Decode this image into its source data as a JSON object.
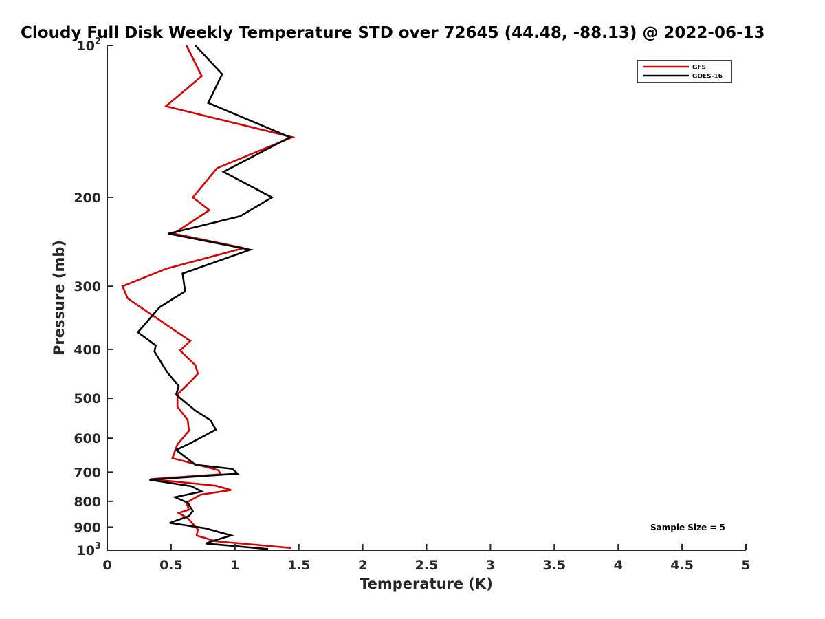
{
  "chart_data": {
    "type": "line",
    "title": "Cloudy Full Disk Weekly Temperature STD over 72645 (44.48, -88.13) @ 2022-06-13",
    "xlabel": "Temperature (K)",
    "ylabel": "Pressure (mb)",
    "xlim": [
      0,
      5
    ],
    "ylim": [
      100,
      1000
    ],
    "yscale": "log",
    "y_reversed": true,
    "grid": false,
    "legend_position": "top-right",
    "x_ticks": [
      0,
      0.5,
      1,
      1.5,
      2,
      2.5,
      3,
      3.5,
      4,
      4.5,
      5
    ],
    "x_tick_labels": [
      "0",
      "0.5",
      "1",
      "1.5",
      "2",
      "2.5",
      "3",
      "3.5",
      "4",
      "4.5",
      "5"
    ],
    "y_ticks": [
      {
        "value": 100,
        "base": "10",
        "exp": "2"
      },
      {
        "value": 200,
        "label": "200"
      },
      {
        "value": 300,
        "label": "300"
      },
      {
        "value": 400,
        "label": "400"
      },
      {
        "value": 500,
        "label": "500"
      },
      {
        "value": 600,
        "label": "600"
      },
      {
        "value": 700,
        "label": "700"
      },
      {
        "value": 800,
        "label": "800"
      },
      {
        "value": 900,
        "label": "900"
      },
      {
        "value": 1000,
        "base": "10",
        "exp": "3"
      }
    ],
    "annotation": "Sample Size = 5",
    "series": [
      {
        "name": "GFS",
        "color": "#dd0000",
        "points": [
          [
            0.62,
            100
          ],
          [
            0.74,
            115
          ],
          [
            0.46,
            132
          ],
          [
            1.45,
            152
          ],
          [
            0.86,
            175
          ],
          [
            0.67,
            200
          ],
          [
            0.8,
            212
          ],
          [
            0.52,
            236
          ],
          [
            1.07,
            252
          ],
          [
            0.46,
            277
          ],
          [
            0.12,
            300
          ],
          [
            0.16,
            317
          ],
          [
            0.65,
            385
          ],
          [
            0.57,
            402
          ],
          [
            0.69,
            430
          ],
          [
            0.71,
            447
          ],
          [
            0.65,
            464
          ],
          [
            0.55,
            491
          ],
          [
            0.55,
            520
          ],
          [
            0.63,
            552
          ],
          [
            0.64,
            580
          ],
          [
            0.55,
            617
          ],
          [
            0.51,
            657
          ],
          [
            0.87,
            694
          ],
          [
            0.89,
            707
          ],
          [
            0.34,
            723
          ],
          [
            0.85,
            745
          ],
          [
            0.97,
            760
          ],
          [
            0.73,
            776
          ],
          [
            0.62,
            805
          ],
          [
            0.64,
            831
          ],
          [
            0.56,
            844
          ],
          [
            0.63,
            864
          ],
          [
            0.71,
            910
          ],
          [
            0.7,
            935
          ],
          [
            0.85,
            960
          ],
          [
            1.44,
            990
          ]
        ]
      },
      {
        "name": "GOES-16",
        "color": "#000000",
        "points": [
          [
            0.69,
            100
          ],
          [
            0.9,
            114
          ],
          [
            0.79,
            130
          ],
          [
            1.43,
            152
          ],
          [
            0.91,
            178
          ],
          [
            1.29,
            200
          ],
          [
            1.04,
            218
          ],
          [
            0.48,
            236
          ],
          [
            1.12,
            254
          ],
          [
            0.59,
            283
          ],
          [
            0.61,
            307
          ],
          [
            0.41,
            330
          ],
          [
            0.24,
            370
          ],
          [
            0.38,
            393
          ],
          [
            0.37,
            404
          ],
          [
            0.47,
            444
          ],
          [
            0.56,
            473
          ],
          [
            0.54,
            492
          ],
          [
            0.69,
            529
          ],
          [
            0.81,
            553
          ],
          [
            0.85,
            577
          ],
          [
            0.65,
            614
          ],
          [
            0.54,
            633
          ],
          [
            0.69,
            677
          ],
          [
            0.98,
            690
          ],
          [
            1.02,
            705
          ],
          [
            0.33,
            725
          ],
          [
            0.66,
            747
          ],
          [
            0.74,
            765
          ],
          [
            0.53,
            785
          ],
          [
            0.63,
            805
          ],
          [
            0.67,
            836
          ],
          [
            0.64,
            856
          ],
          [
            0.49,
            883
          ],
          [
            0.77,
            905
          ],
          [
            0.97,
            935
          ],
          [
            0.82,
            960
          ],
          [
            0.77,
            970
          ],
          [
            1.26,
            995
          ]
        ]
      }
    ]
  }
}
